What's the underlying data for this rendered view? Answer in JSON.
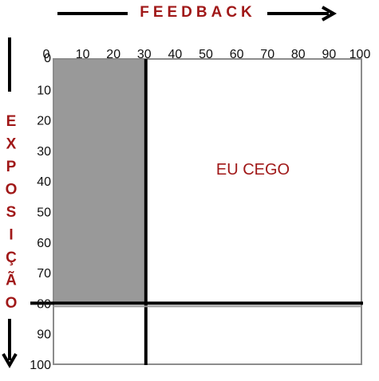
{
  "title_top": "FEEDBACK",
  "title_left_letters": [
    "E",
    "X",
    "P",
    "O",
    "S",
    "I",
    "Ç",
    "Ã",
    "O"
  ],
  "x_ticks": [
    "0",
    "10",
    "20",
    "30",
    "40",
    "50",
    "60",
    "70",
    "80",
    "90",
    "100"
  ],
  "y_ticks": [
    "0",
    "10",
    "20",
    "30",
    "40",
    "50",
    "60",
    "70",
    "80",
    "90",
    "100"
  ],
  "region_label": "EU CEGO",
  "divider_x": 30,
  "divider_y": 80,
  "axis_min": 0,
  "axis_max": 100,
  "colors": {
    "title": "#a01818",
    "shaded_quadrant": "#999999",
    "lines": "#000000",
    "border": "#8c8c8c"
  }
}
